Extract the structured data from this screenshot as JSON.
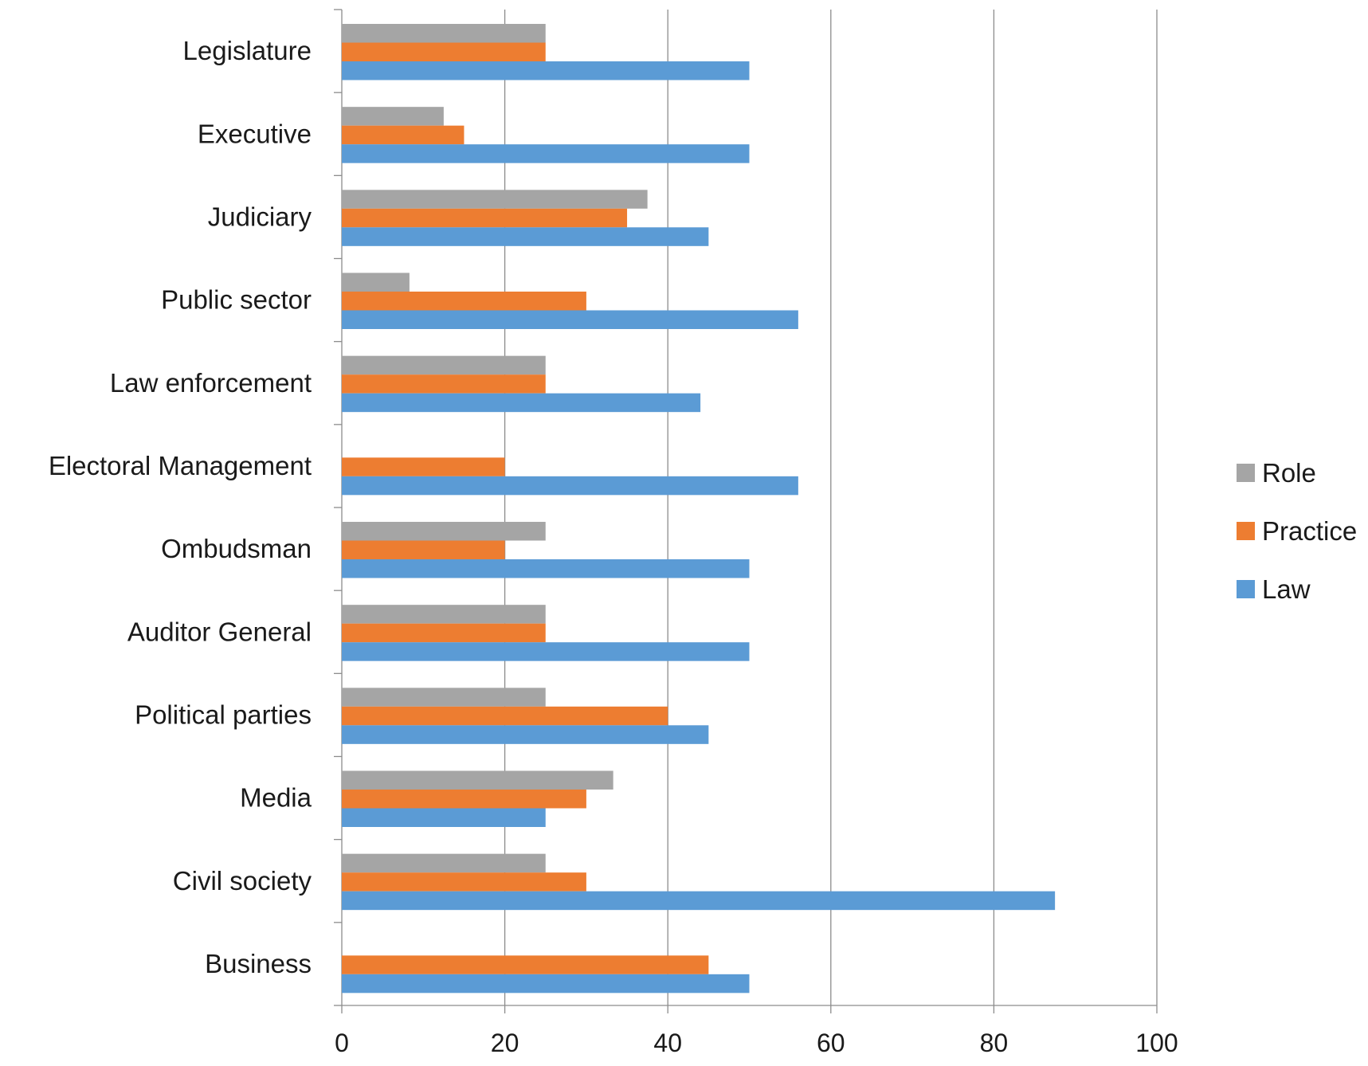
{
  "chart_data": {
    "type": "bar",
    "orientation": "horizontal",
    "title": "",
    "xlabel": "",
    "ylabel": "",
    "xlim": [
      0,
      100
    ],
    "x_ticks": [
      "0",
      "20",
      "40",
      "60",
      "80",
      "100"
    ],
    "grid": true,
    "legend_position": "right",
    "categories": [
      "Legislature",
      "Executive",
      "Judiciary",
      "Public sector",
      "Law enforcement",
      "Electoral Management",
      "Ombudsman",
      "Auditor General",
      "Political parties",
      "Media",
      "Civil society",
      "Business"
    ],
    "series": [
      {
        "name": "Role",
        "color": "#a5a5a5",
        "values": [
          25,
          12.5,
          37.5,
          8.3,
          25,
          0,
          25,
          25,
          25,
          33.3,
          25,
          0
        ]
      },
      {
        "name": "Practice",
        "color": "#ed7d31",
        "values": [
          25,
          15,
          35,
          30,
          25,
          20,
          20,
          25,
          40,
          30,
          30,
          45
        ]
      },
      {
        "name": "Law",
        "color": "#5b9bd5",
        "values": [
          50,
          50,
          45,
          56,
          44,
          56,
          50,
          50,
          45,
          25,
          87.5,
          50
        ]
      }
    ]
  }
}
